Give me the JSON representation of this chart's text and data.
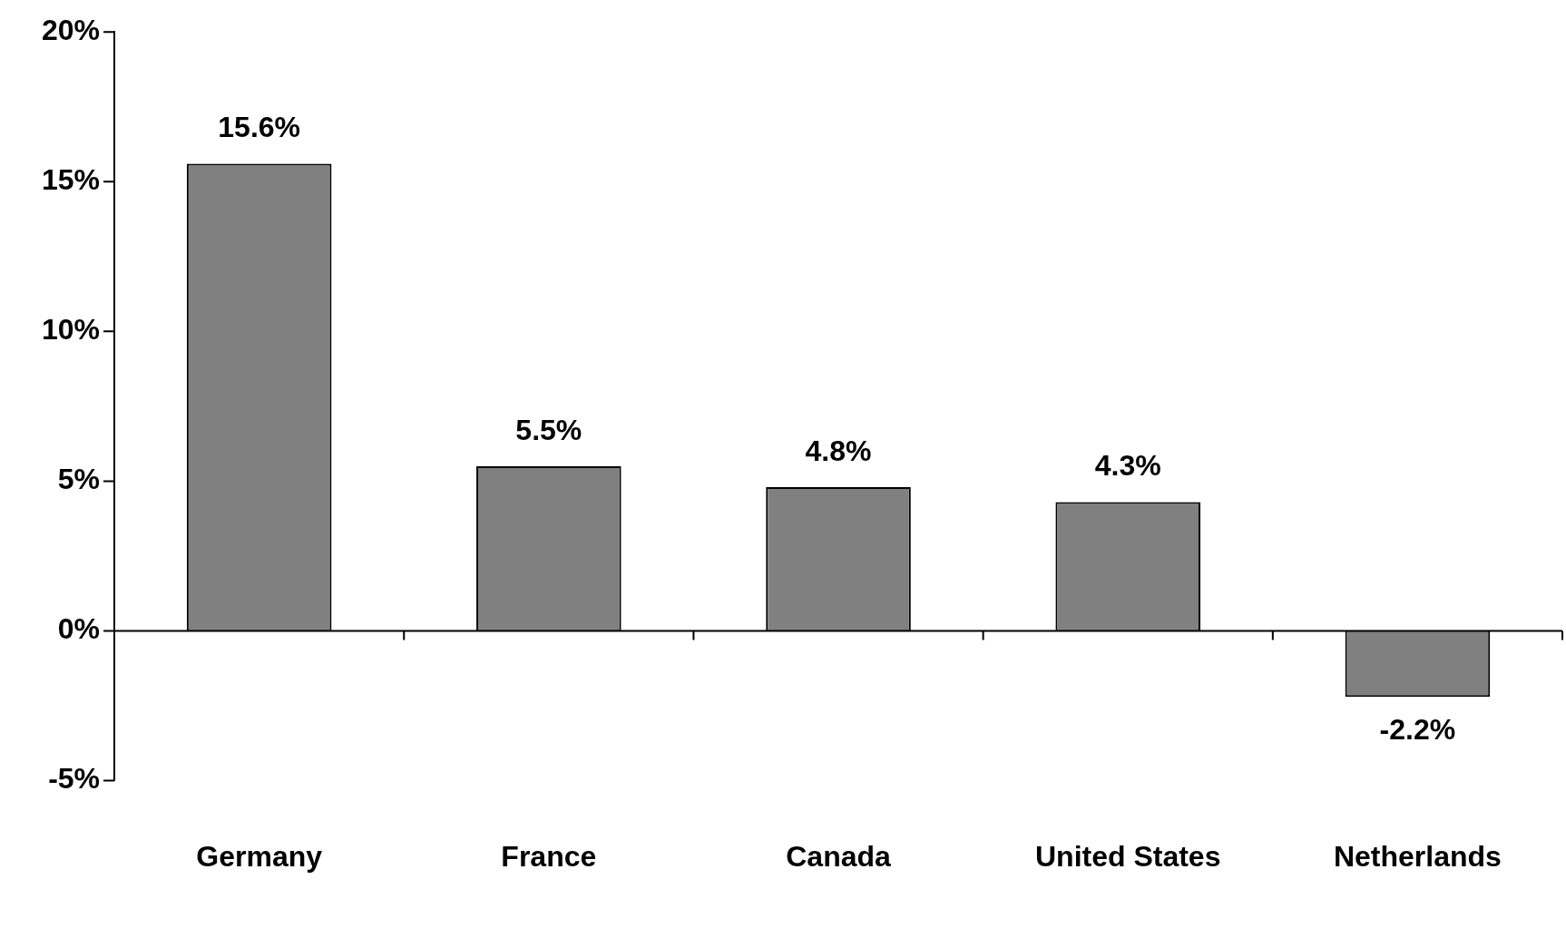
{
  "chart_data": {
    "type": "bar",
    "categories": [
      "Germany",
      "France",
      "Canada",
      "United States",
      "Netherlands"
    ],
    "values": [
      15.6,
      5.5,
      4.8,
      4.3,
      -2.2
    ],
    "value_labels": [
      "15.6%",
      "5.5%",
      "4.8%",
      "4.3%",
      "-2.2%"
    ],
    "color": "#808080",
    "ylim": [
      -5,
      20
    ],
    "yticks": [
      {
        "value": -5,
        "label": "-5%"
      },
      {
        "value": 0,
        "label": "0%"
      },
      {
        "value": 5,
        "label": "5%"
      },
      {
        "value": 10,
        "label": "10%"
      },
      {
        "value": 15,
        "label": "15%"
      },
      {
        "value": 20,
        "label": "20%"
      }
    ],
    "legend": false
  }
}
